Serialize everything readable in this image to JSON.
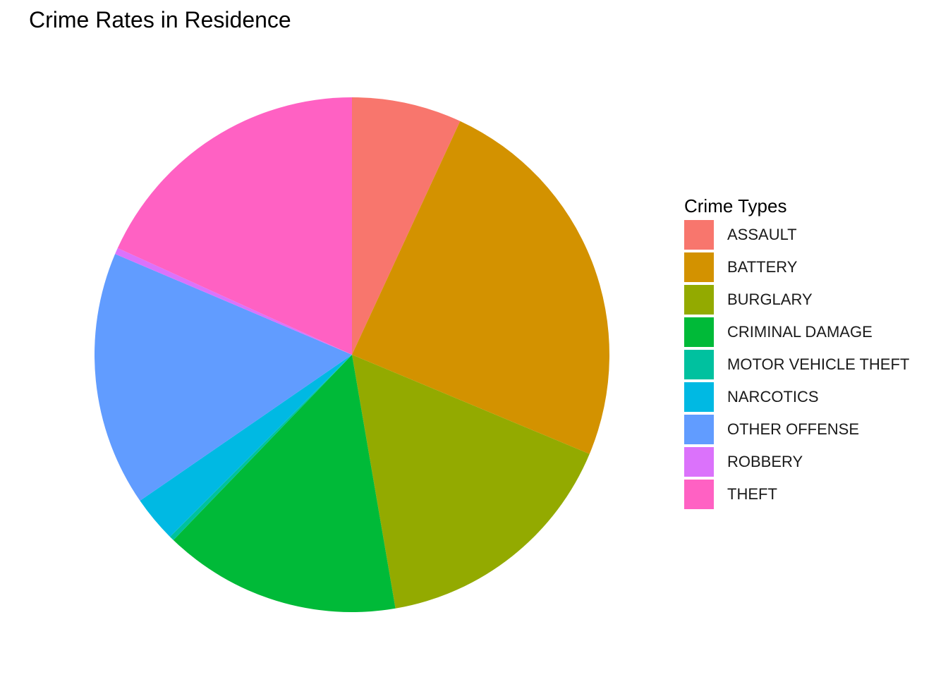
{
  "chart_data": {
    "type": "pie",
    "title": "Crime Rates in Residence",
    "legend_title": "Crime Types",
    "legend_position": "right",
    "start": "12 o'clock",
    "direction": "clockwise",
    "unit": "percent",
    "slices": [
      {
        "label": "ASSAULT",
        "value": 6.9,
        "color": "#F8766D"
      },
      {
        "label": "BATTERY",
        "value": 24.4,
        "color": "#D39200"
      },
      {
        "label": "BURGLARY",
        "value": 16.0,
        "color": "#93AA00"
      },
      {
        "label": "CRIMINAL DAMAGE",
        "value": 14.9,
        "color": "#00BA38"
      },
      {
        "label": "MOTOR VEHICLE THEFT",
        "value": 0.3,
        "color": "#00C19F"
      },
      {
        "label": "NARCOTICS",
        "value": 2.9,
        "color": "#00B9E3"
      },
      {
        "label": "OTHER OFFENSE",
        "value": 16.0,
        "color": "#619CFF"
      },
      {
        "label": "ROBBERY",
        "value": 0.4,
        "color": "#DB72FB"
      },
      {
        "label": "THEFT",
        "value": 18.2,
        "color": "#FF61C3"
      }
    ]
  }
}
